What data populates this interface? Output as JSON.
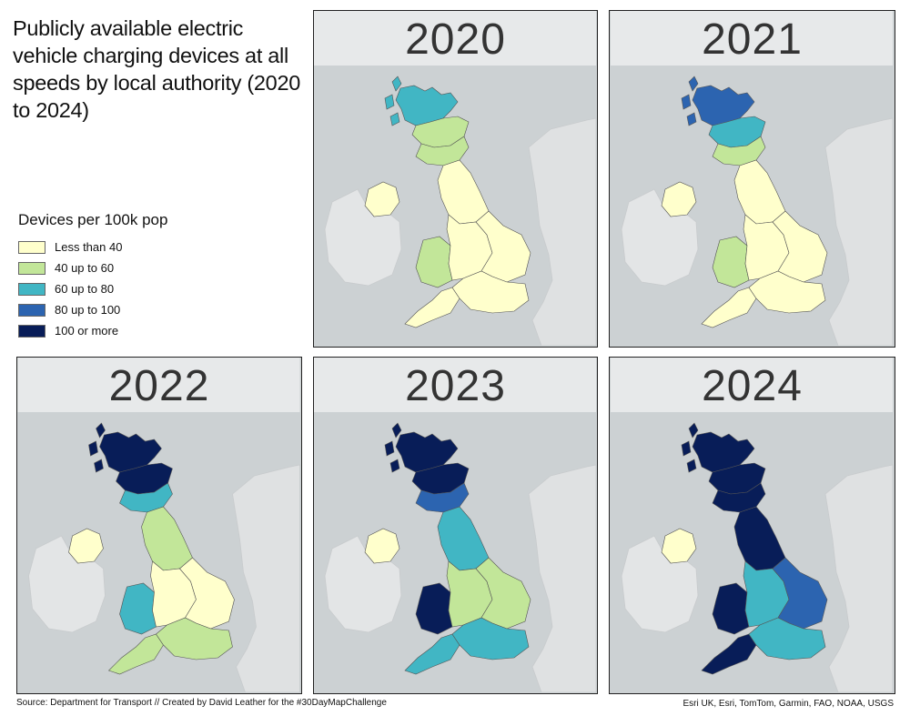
{
  "title": "Publicly available electric vehicle charging devices at all speeds by local authority (2020 to 2024)",
  "legend": {
    "title": "Devices per 100k pop",
    "items": [
      {
        "label": "Less than 40",
        "color": "#ffffcc"
      },
      {
        "label": "40 up to 60",
        "color": "#c2e699"
      },
      {
        "label": "60 up to 80",
        "color": "#41b6c4"
      },
      {
        "label": "80 up to 100",
        "color": "#2c64b0"
      },
      {
        "label": "100 or more",
        "color": "#081d58"
      }
    ]
  },
  "maps": [
    {
      "year": "2020",
      "regions": {
        "scotland_north": 2,
        "scotland_central": 1,
        "scotland_south": 1,
        "north_england": 0,
        "wales": 1,
        "midlands": 0,
        "east": 0,
        "south_west": 0,
        "south_east": 0,
        "northern_ireland": 0
      }
    },
    {
      "year": "2021",
      "regions": {
        "scotland_north": 3,
        "scotland_central": 2,
        "scotland_south": 1,
        "north_england": 0,
        "wales": 1,
        "midlands": 0,
        "east": 0,
        "south_west": 0,
        "south_east": 0,
        "northern_ireland": 0
      }
    },
    {
      "year": "2022",
      "regions": {
        "scotland_north": 4,
        "scotland_central": 4,
        "scotland_south": 2,
        "north_england": 1,
        "wales": 2,
        "midlands": 0,
        "east": 0,
        "south_west": 1,
        "south_east": 1,
        "northern_ireland": 0
      }
    },
    {
      "year": "2023",
      "regions": {
        "scotland_north": 4,
        "scotland_central": 4,
        "scotland_south": 3,
        "north_england": 2,
        "wales": 4,
        "midlands": 1,
        "east": 1,
        "south_west": 2,
        "south_east": 2,
        "northern_ireland": 0
      }
    },
    {
      "year": "2024",
      "regions": {
        "scotland_north": 4,
        "scotland_central": 4,
        "scotland_south": 4,
        "north_england": 4,
        "wales": 4,
        "midlands": 2,
        "east": 3,
        "south_west": 4,
        "south_east": 2,
        "northern_ireland": 0
      }
    }
  ],
  "source": "Source: Department for Transport // Created by David Leather for the #30DayMapChallenge",
  "basemap_credit": "Esri UK, Esri, TomTom, Garmin, FAO, NOAA, USGS"
}
